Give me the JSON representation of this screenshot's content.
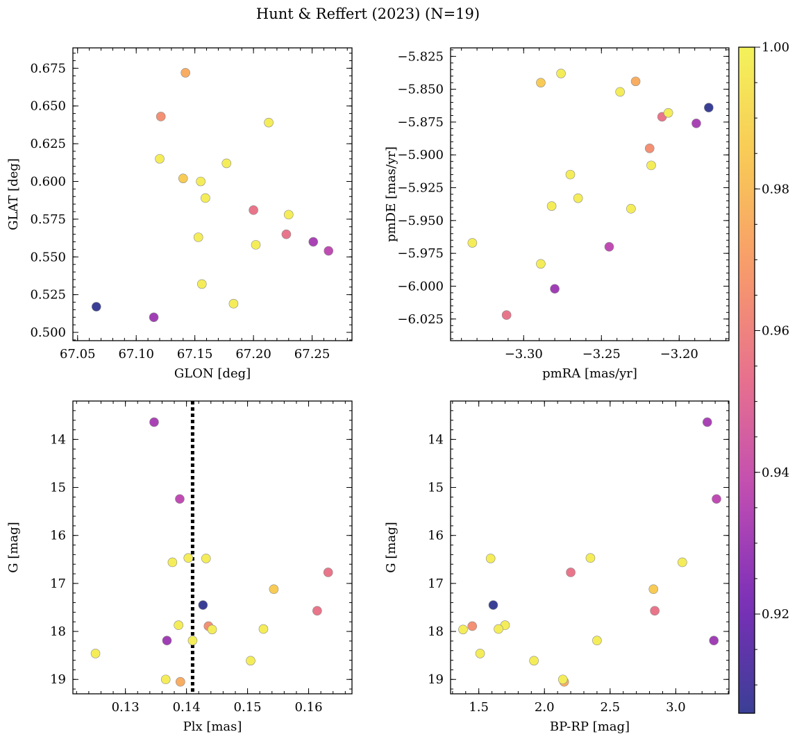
{
  "chart_data": {
    "title": "Hunt & Reffert (2023) (N=19)",
    "colorbar": {
      "range": [
        0.906,
        1.0
      ],
      "ticks": [
        0.92,
        0.94,
        0.96,
        0.98,
        1.0
      ],
      "tick_labels": [
        "0.92",
        "0.94",
        "0.96",
        "0.98",
        "1.00"
      ],
      "colormap": "plasma",
      "colors": [
        "#3a3f95",
        "#7b2fb8",
        "#c04db3",
        "#e7708e",
        "#f89a6b",
        "#f8c956",
        "#f3f25a"
      ]
    },
    "stars": [
      {
        "glon": 67.066,
        "glat": 0.517,
        "pmra": -3.181,
        "pmde": -5.864,
        "plx": 0.1427,
        "g": 17.45,
        "bprp": 1.61,
        "prob": 0.906
      },
      {
        "glon": 67.115,
        "glat": 0.51,
        "pmra": -3.28,
        "pmde": -6.002,
        "plx": 0.1368,
        "g": 18.19,
        "bprp": 3.29,
        "prob": 0.93
      },
      {
        "glon": 67.251,
        "glat": 0.56,
        "pmra": -3.189,
        "pmde": -5.876,
        "plx": 0.1347,
        "g": 13.64,
        "bprp": 3.24,
        "prob": 0.932
      },
      {
        "glon": 67.264,
        "glat": 0.554,
        "pmra": -3.245,
        "pmde": -5.97,
        "plx": 0.1389,
        "g": 15.24,
        "bprp": 3.31,
        "prob": 0.937
      },
      {
        "glon": 67.228,
        "glat": 0.565,
        "pmra": -3.311,
        "pmde": -6.022,
        "plx": 0.1632,
        "g": 16.77,
        "bprp": 2.2,
        "prob": 0.955
      },
      {
        "glon": 67.2,
        "glat": 0.581,
        "pmra": -3.211,
        "pmde": -5.871,
        "plx": 0.1614,
        "g": 17.57,
        "bprp": 2.84,
        "prob": 0.955
      },
      {
        "glon": 67.121,
        "glat": 0.643,
        "pmra": -3.219,
        "pmde": -5.895,
        "plx": 0.1436,
        "g": 17.89,
        "bprp": 1.45,
        "prob": 0.965
      },
      {
        "glon": 67.142,
        "glat": 0.672,
        "pmra": -3.228,
        "pmde": -5.844,
        "plx": 0.139,
        "g": 19.05,
        "bprp": 2.15,
        "prob": 0.975
      },
      {
        "glon": 67.14,
        "glat": 0.602,
        "pmra": -3.289,
        "pmde": -5.845,
        "plx": 0.1543,
        "g": 17.12,
        "bprp": 2.83,
        "prob": 0.985
      },
      {
        "glon": 67.213,
        "glat": 0.639,
        "pmra": -3.207,
        "pmde": -5.868,
        "plx": 0.1432,
        "g": 16.48,
        "bprp": 1.59,
        "prob": 0.998
      },
      {
        "glon": 67.12,
        "glat": 0.615,
        "pmra": -3.276,
        "pmde": -5.838,
        "plx": 0.1403,
        "g": 16.47,
        "bprp": 2.35,
        "prob": 0.998
      },
      {
        "glon": 67.177,
        "glat": 0.612,
        "pmra": -3.238,
        "pmde": -5.852,
        "plx": 0.1377,
        "g": 16.56,
        "bprp": 3.05,
        "prob": 0.998
      },
      {
        "glon": 67.155,
        "glat": 0.6,
        "pmra": -3.218,
        "pmde": -5.908,
        "plx": 0.1387,
        "g": 17.87,
        "bprp": 1.7,
        "prob": 0.998
      },
      {
        "glon": 67.159,
        "glat": 0.589,
        "pmra": -3.27,
        "pmde": -5.915,
        "plx": 0.1442,
        "g": 17.96,
        "bprp": 1.38,
        "prob": 0.998
      },
      {
        "glon": 67.23,
        "glat": 0.578,
        "pmra": -3.231,
        "pmde": -5.941,
        "plx": 0.1526,
        "g": 17.95,
        "bprp": 1.65,
        "prob": 0.998
      },
      {
        "glon": 67.202,
        "glat": 0.558,
        "pmra": -3.265,
        "pmde": -5.933,
        "plx": 0.141,
        "g": 18.19,
        "bprp": 2.4,
        "prob": 0.998
      },
      {
        "glon": 67.153,
        "glat": 0.563,
        "pmra": -3.282,
        "pmde": -5.939,
        "plx": 0.1251,
        "g": 18.46,
        "bprp": 1.51,
        "prob": 0.998
      },
      {
        "glon": 67.156,
        "glat": 0.532,
        "pmra": -3.333,
        "pmde": -5.967,
        "plx": 0.1505,
        "g": 18.61,
        "bprp": 1.92,
        "prob": 0.998
      },
      {
        "glon": 67.183,
        "glat": 0.519,
        "pmra": -3.289,
        "pmde": -5.983,
        "plx": 0.1366,
        "g": 19.0,
        "bprp": 2.14,
        "prob": 0.998
      }
    ],
    "panels": [
      {
        "name": "sky-panel",
        "type": "scatter",
        "x": "glon",
        "y": "glat",
        "xlabel": "GLON [deg]",
        "ylabel": "GLAT [deg]",
        "xlim": [
          67.046,
          67.284
        ],
        "ylim": [
          0.4945,
          0.6885
        ],
        "yinvert": false,
        "xticks": [
          67.05,
          67.1,
          67.15,
          67.2,
          67.25
        ],
        "xtick_labels": [
          "67.05",
          "67.10",
          "67.15",
          "67.20",
          "67.25"
        ],
        "yticks": [
          0.5,
          0.525,
          0.55,
          0.575,
          0.6,
          0.625,
          0.65,
          0.675
        ],
        "ytick_labels": [
          "0.500",
          "0.525",
          "0.550",
          "0.575",
          "0.600",
          "0.625",
          "0.650",
          "0.675"
        ],
        "xminor": 0.01,
        "yminor": 0.005
      },
      {
        "name": "proper-motion-panel",
        "type": "scatter",
        "x": "pmra",
        "y": "pmde",
        "xlabel": "pmRA [mas/yr]",
        "ylabel": "pmDE [mas/yr]",
        "xlim": [
          -3.347,
          -3.168
        ],
        "ylim": [
          -6.0415,
          -5.8185
        ],
        "yinvert": false,
        "xticks": [
          -3.3,
          -3.25,
          -3.2
        ],
        "xtick_labels": [
          "−3.30",
          "−3.25",
          "−3.20"
        ],
        "yticks": [
          -6.025,
          -6.0,
          -5.975,
          -5.95,
          -5.925,
          -5.9,
          -5.875,
          -5.85,
          -5.825
        ],
        "ytick_labels": [
          "−6.025",
          "−6.000",
          "−5.975",
          "−5.950",
          "−5.925",
          "−5.900",
          "−5.875",
          "−5.850",
          "−5.825"
        ],
        "xminor": 0.01,
        "yminor": 0.005
      },
      {
        "name": "parallax-panel",
        "type": "scatter",
        "x": "plx",
        "y": "g",
        "xlabel": "Plx [mas]",
        "ylabel": "G [mag]",
        "xlim": [
          0.1214,
          0.1671
        ],
        "ylim": [
          13.2,
          19.3
        ],
        "yinvert": true,
        "xticks": [
          0.13,
          0.14,
          0.15,
          0.16
        ],
        "xtick_labels": [
          "0.13",
          "0.14",
          "0.15",
          "0.16"
        ],
        "yticks": [
          14,
          15,
          16,
          17,
          18,
          19
        ],
        "ytick_labels": [
          "14",
          "15",
          "16",
          "17",
          "18",
          "19"
        ],
        "xminor": 0.002,
        "yminor": 0.2,
        "vline": 0.141
      },
      {
        "name": "cmd-panel",
        "type": "scatter",
        "x": "bprp",
        "y": "g",
        "xlabel": "BP-RP [mag]",
        "ylabel": "G [mag]",
        "xlim": [
          1.285,
          3.405
        ],
        "ylim": [
          13.2,
          19.3
        ],
        "yinvert": true,
        "xticks": [
          1.5,
          2.0,
          2.5,
          3.0
        ],
        "xtick_labels": [
          "1.5",
          "2.0",
          "2.5",
          "3.0"
        ],
        "yticks": [
          14,
          15,
          16,
          17,
          18,
          19
        ],
        "ytick_labels": [
          "14",
          "15",
          "16",
          "17",
          "18",
          "19"
        ],
        "xminor": 0.1,
        "yminor": 0.2
      }
    ]
  }
}
